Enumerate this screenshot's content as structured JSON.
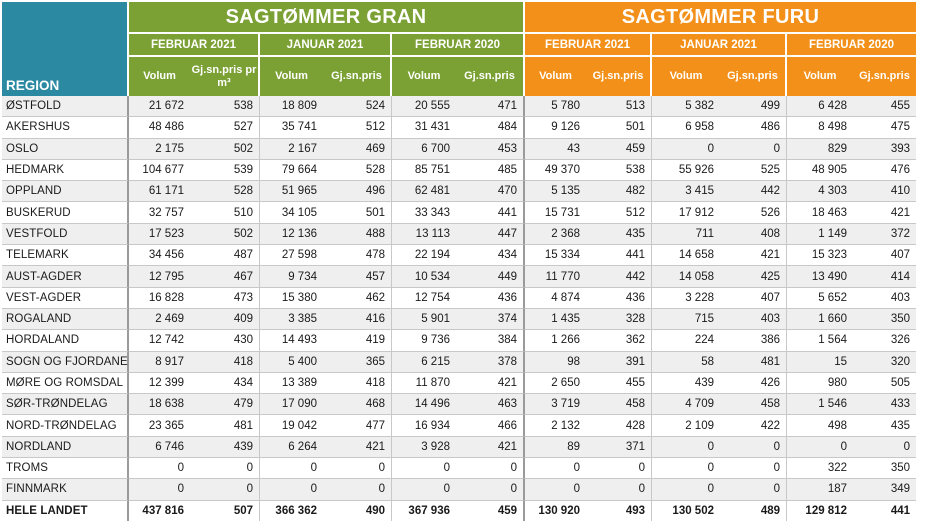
{
  "table": {
    "region_header": "REGION",
    "groups": [
      {
        "title": "SAGTØMMER GRAN",
        "color": "#7ba034",
        "periods": [
          "FEBRUAR 2021",
          "JANUAR 2021",
          "FEBRUAR 2020"
        ]
      },
      {
        "title": "SAGTØMMER FURU",
        "color": "#f39019",
        "periods": [
          "FEBRUAR 2021",
          "JANUAR 2021",
          "FEBRUAR 2020"
        ]
      }
    ],
    "sub_headers": {
      "volum": "Volum",
      "price_gran_first": "Gj.sn.pris pr m³",
      "price": "Gj.sn.pris"
    },
    "region_color": "#2b8aa2",
    "rows": [
      {
        "region": "ØSTFOLD",
        "values": [
          "21 672",
          "538",
          "18 809",
          "524",
          "20 555",
          "471",
          "5 780",
          "513",
          "5 382",
          "499",
          "6 428",
          "455"
        ]
      },
      {
        "region": "AKERSHUS",
        "values": [
          "48 486",
          "527",
          "35 741",
          "512",
          "31 431",
          "484",
          "9 126",
          "501",
          "6 958",
          "486",
          "8 498",
          "475"
        ]
      },
      {
        "region": "OSLO",
        "values": [
          "2 175",
          "502",
          "2 167",
          "469",
          "6 700",
          "453",
          "43",
          "459",
          "0",
          "0",
          "829",
          "393"
        ]
      },
      {
        "region": "HEDMARK",
        "values": [
          "104 677",
          "539",
          "79 664",
          "528",
          "85 751",
          "485",
          "49 370",
          "538",
          "55 926",
          "525",
          "48 905",
          "476"
        ]
      },
      {
        "region": "OPPLAND",
        "values": [
          "61 171",
          "528",
          "51 965",
          "496",
          "62 481",
          "470",
          "5 135",
          "482",
          "3 415",
          "442",
          "4 303",
          "410"
        ]
      },
      {
        "region": "BUSKERUD",
        "values": [
          "32 757",
          "510",
          "34 105",
          "501",
          "33 343",
          "441",
          "15 731",
          "512",
          "17 912",
          "526",
          "18 463",
          "421"
        ]
      },
      {
        "region": "VESTFOLD",
        "values": [
          "17 523",
          "502",
          "12 136",
          "488",
          "13 113",
          "447",
          "2 368",
          "435",
          "711",
          "408",
          "1 149",
          "372"
        ]
      },
      {
        "region": "TELEMARK",
        "values": [
          "34 456",
          "487",
          "27 598",
          "478",
          "22 194",
          "434",
          "15 334",
          "441",
          "14 658",
          "421",
          "15 323",
          "407"
        ]
      },
      {
        "region": "AUST-AGDER",
        "values": [
          "12 795",
          "467",
          "9 734",
          "457",
          "10 534",
          "449",
          "11 770",
          "442",
          "14 058",
          "425",
          "13 490",
          "414"
        ]
      },
      {
        "region": "VEST-AGDER",
        "values": [
          "16 828",
          "473",
          "15 380",
          "462",
          "12 754",
          "436",
          "4 874",
          "436",
          "3 228",
          "407",
          "5 652",
          "403"
        ]
      },
      {
        "region": "ROGALAND",
        "values": [
          "2 469",
          "409",
          "3 385",
          "416",
          "5 901",
          "374",
          "1 435",
          "328",
          "715",
          "403",
          "1 660",
          "350"
        ]
      },
      {
        "region": "HORDALAND",
        "values": [
          "12 742",
          "430",
          "14 493",
          "419",
          "9 736",
          "384",
          "1 266",
          "362",
          "224",
          "386",
          "1 564",
          "326"
        ]
      },
      {
        "region": "SOGN OG FJORDANE",
        "values": [
          "8 917",
          "418",
          "5 400",
          "365",
          "6 215",
          "378",
          "98",
          "391",
          "58",
          "481",
          "15",
          "320"
        ]
      },
      {
        "region": "MØRE OG ROMSDAL",
        "values": [
          "12 399",
          "434",
          "13 389",
          "418",
          "11 870",
          "421",
          "2 650",
          "455",
          "439",
          "426",
          "980",
          "505"
        ]
      },
      {
        "region": "SØR-TRØNDELAG",
        "values": [
          "18 638",
          "479",
          "17 090",
          "468",
          "14 496",
          "463",
          "3 719",
          "458",
          "4 709",
          "458",
          "1 546",
          "433"
        ]
      },
      {
        "region": "NORD-TRØNDELAG",
        "values": [
          "23 365",
          "481",
          "19 042",
          "477",
          "16 934",
          "466",
          "2 132",
          "428",
          "2 109",
          "422",
          "498",
          "435"
        ]
      },
      {
        "region": "NORDLAND",
        "values": [
          "6 746",
          "439",
          "6 264",
          "421",
          "3 928",
          "421",
          "89",
          "371",
          "0",
          "0",
          "0",
          "0"
        ]
      },
      {
        "region": "TROMS",
        "values": [
          "0",
          "0",
          "0",
          "0",
          "0",
          "0",
          "0",
          "0",
          "0",
          "0",
          "322",
          "350"
        ]
      },
      {
        "region": "FINNMARK",
        "values": [
          "0",
          "0",
          "0",
          "0",
          "0",
          "0",
          "0",
          "0",
          "0",
          "0",
          "187",
          "349"
        ]
      }
    ],
    "total": {
      "region": "HELE LANDET",
      "values": [
        "437 816",
        "507",
        "366 362",
        "490",
        "367 936",
        "459",
        "130 920",
        "493",
        "130 502",
        "489",
        "129 812",
        "441"
      ]
    }
  }
}
